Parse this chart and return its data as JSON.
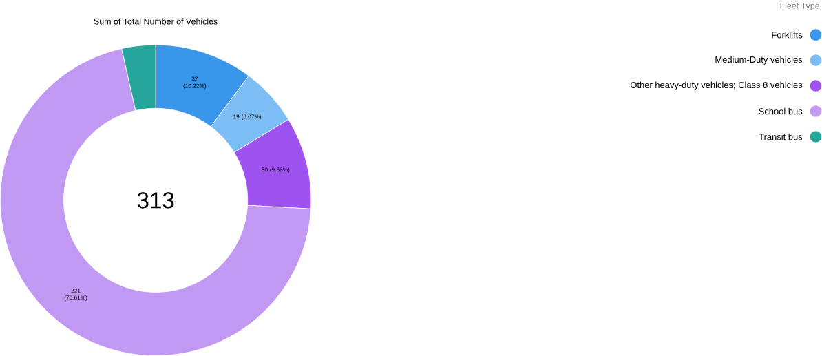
{
  "chart_data": {
    "type": "donut",
    "title": "Sum of Total Number of Vehicles",
    "legend_title": "Fleet Type",
    "categories": [
      "Forklifts",
      "Medium-Duty vehicles",
      "Other heavy-duty vehicles; Class 8 vehicles",
      "School bus",
      "Transit bus"
    ],
    "values": [
      32,
      19,
      30,
      221,
      11
    ],
    "colors": [
      "#3a96eb",
      "#7dbdf5",
      "#9e52f0",
      "#c198f2",
      "#26a69a"
    ],
    "value_labels": [
      "32 (10.22%)",
      "19 (6.07%)",
      "30 (9.58%)",
      "221 (70.61%)",
      null
    ],
    "annotations": [
      "313"
    ],
    "legend": "top right"
  }
}
